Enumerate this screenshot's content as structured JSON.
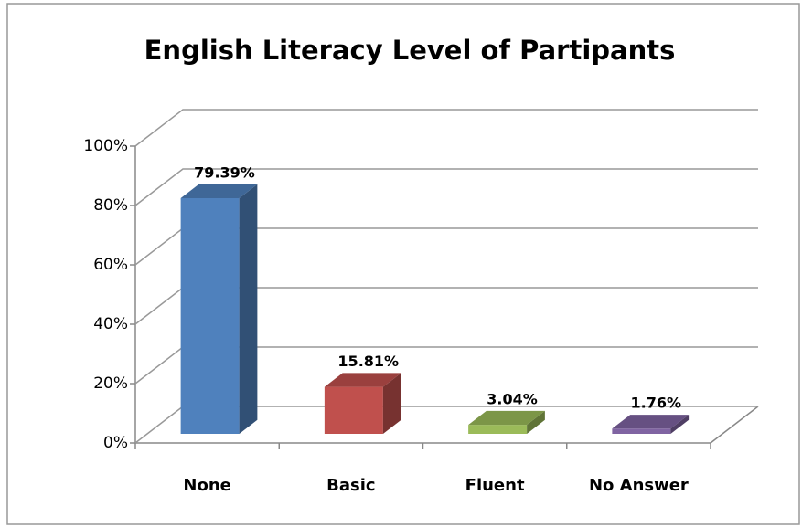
{
  "chart_data": {
    "type": "bar3d",
    "title": "English Literacy Level of Partipants",
    "categories": [
      "None",
      "Basic",
      "Fluent",
      "No Answer"
    ],
    "values": [
      79.39,
      15.81,
      3.04,
      1.76
    ],
    "value_labels": [
      "79.39%",
      "15.81%",
      "3.04%",
      "1.76%"
    ],
    "colors": [
      "#4f81bd",
      "#c0504d",
      "#9bbb59",
      "#8064a2"
    ],
    "ylim": [
      0,
      100
    ],
    "yticks": [
      {
        "value": 0,
        "label": "0%"
      },
      {
        "value": 20,
        "label": "20%"
      },
      {
        "value": 40,
        "label": "40%"
      },
      {
        "value": 60,
        "label": "60%"
      },
      {
        "value": 80,
        "label": "80%"
      },
      {
        "value": 100,
        "label": "100%"
      }
    ],
    "grid": true
  }
}
